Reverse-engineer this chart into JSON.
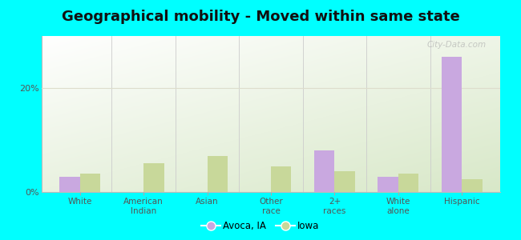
{
  "title": "Geographical mobility - Moved within same state",
  "categories": [
    "White",
    "American\nIndian",
    "Asian",
    "Other\nrace",
    "2+\nraces",
    "White\nalone",
    "Hispanic"
  ],
  "avoca_values": [
    3.0,
    0.0,
    0.0,
    0.0,
    8.0,
    3.0,
    26.0
  ],
  "iowa_values": [
    3.5,
    5.5,
    7.0,
    5.0,
    4.0,
    3.5,
    2.5
  ],
  "avoca_color": "#c9a8e0",
  "iowa_color": "#c8d89a",
  "background_color": "#00ffff",
  "title_fontsize": 13,
  "ylim": [
    0,
    30
  ],
  "yticks": [
    0,
    20
  ],
  "ytick_labels": [
    "0%",
    "20%"
  ],
  "legend_avoca": "Avoca, IA",
  "legend_iowa": "Iowa",
  "bar_width": 0.32,
  "watermark": "City-Data.com"
}
